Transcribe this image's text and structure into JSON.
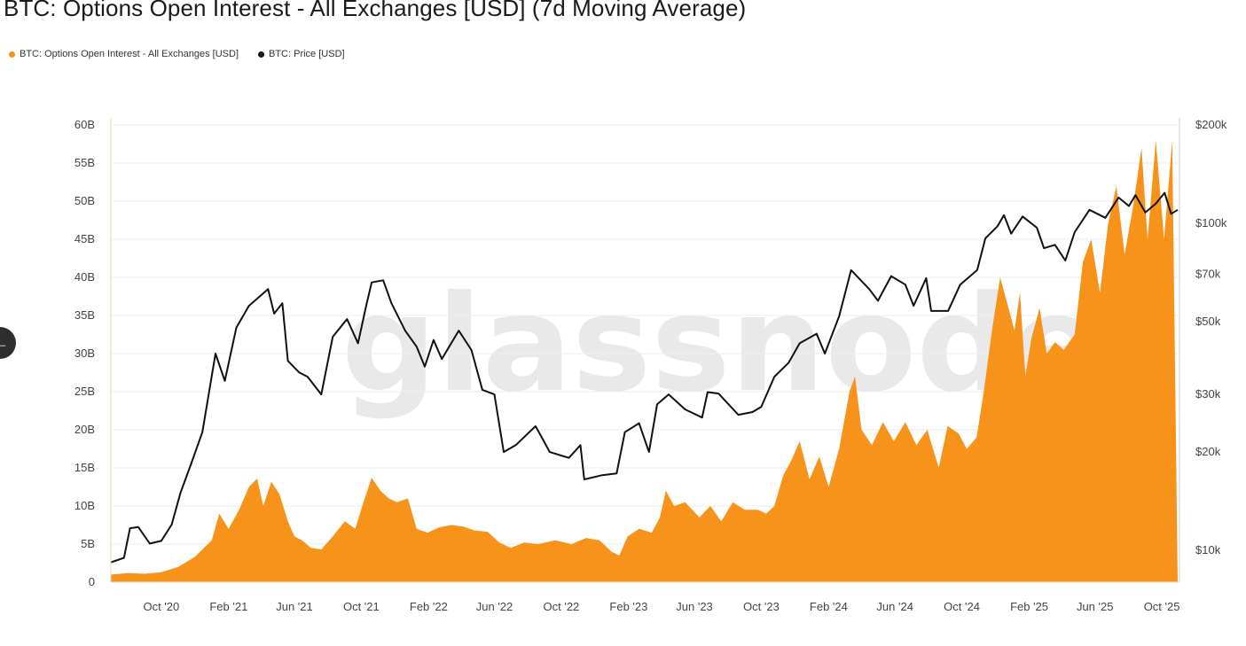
{
  "title": "BTC: Options Open Interest - All Exchanges [USD] (7d Moving Average)",
  "watermark": "glassnode",
  "side_button": "←",
  "legend": [
    {
      "label": "BTC: Options Open Interest - All Exchanges [USD]",
      "color": "#f7931a"
    },
    {
      "label": "BTC: Price [USD]",
      "color": "#111111"
    }
  ],
  "chart_data": {
    "type": "area",
    "title": "BTC: Options Open Interest - All Exchanges [USD] (7d Moving Average)",
    "x_range": [
      "2020-07-01",
      "2025-10-30"
    ],
    "x_ticks": [
      {
        "label": "Oct '20",
        "date": "2020-10-01"
      },
      {
        "label": "Feb '21",
        "date": "2021-02-01"
      },
      {
        "label": "Jun '21",
        "date": "2021-06-01"
      },
      {
        "label": "Oct '21",
        "date": "2021-10-01"
      },
      {
        "label": "Feb '22",
        "date": "2022-02-01"
      },
      {
        "label": "Jun '22",
        "date": "2022-06-01"
      },
      {
        "label": "Oct '22",
        "date": "2022-10-01"
      },
      {
        "label": "Feb '23",
        "date": "2023-02-01"
      },
      {
        "label": "Jun '23",
        "date": "2023-06-01"
      },
      {
        "label": "Oct '23",
        "date": "2023-10-01"
      },
      {
        "label": "Feb '24",
        "date": "2024-02-01"
      },
      {
        "label": "Jun '24",
        "date": "2024-06-01"
      },
      {
        "label": "Oct '24",
        "date": "2024-10-01"
      },
      {
        "label": "Feb '25",
        "date": "2025-02-01"
      },
      {
        "label": "Jun '25",
        "date": "2025-06-01"
      },
      {
        "label": "Oct '25",
        "date": "2025-10-01"
      }
    ],
    "y_left": {
      "min": 0,
      "max": 60,
      "ticks": [
        {
          "label": "0",
          "v": 0
        },
        {
          "label": "5B",
          "v": 5
        },
        {
          "label": "10B",
          "v": 10
        },
        {
          "label": "15B",
          "v": 15
        },
        {
          "label": "20B",
          "v": 20
        },
        {
          "label": "25B",
          "v": 25
        },
        {
          "label": "30B",
          "v": 30
        },
        {
          "label": "35B",
          "v": 35
        },
        {
          "label": "40B",
          "v": 40
        },
        {
          "label": "45B",
          "v": 45
        },
        {
          "label": "50B",
          "v": 50
        },
        {
          "label": "55B",
          "v": 55
        },
        {
          "label": "60B",
          "v": 60
        }
      ]
    },
    "y_right": {
      "scale": "log",
      "min": 8000,
      "max": 200000,
      "ticks": [
        {
          "label": "$10k",
          "v": 10000
        },
        {
          "label": "$20k",
          "v": 20000
        },
        {
          "label": "$30k",
          "v": 30000
        },
        {
          "label": "$50k",
          "v": 50000
        },
        {
          "label": "$70k",
          "v": 70000
        },
        {
          "label": "$100k",
          "v": 100000
        },
        {
          "label": "$200k",
          "v": 200000
        }
      ]
    },
    "series": [
      {
        "name": "BTC: Options Open Interest - All Exchanges [USD]",
        "unit": "B USD",
        "color": "#f7931a",
        "points": [
          [
            "2020-07-01",
            1.0
          ],
          [
            "2020-08-01",
            1.2
          ],
          [
            "2020-09-01",
            1.1
          ],
          [
            "2020-10-01",
            1.3
          ],
          [
            "2020-11-01",
            2.0
          ],
          [
            "2020-12-01",
            3.3
          ],
          [
            "2021-01-01",
            5.5
          ],
          [
            "2021-01-15",
            9.0
          ],
          [
            "2021-02-01",
            7.0
          ],
          [
            "2021-02-20",
            9.5
          ],
          [
            "2021-03-10",
            12.5
          ],
          [
            "2021-03-25",
            13.6
          ],
          [
            "2021-04-05",
            10.0
          ],
          [
            "2021-04-20",
            13.2
          ],
          [
            "2021-05-05",
            11.5
          ],
          [
            "2021-05-20",
            8.0
          ],
          [
            "2021-06-01",
            6.0
          ],
          [
            "2021-06-15",
            5.5
          ],
          [
            "2021-07-01",
            4.5
          ],
          [
            "2021-07-20",
            4.3
          ],
          [
            "2021-08-10",
            6.0
          ],
          [
            "2021-09-01",
            8.0
          ],
          [
            "2021-09-20",
            7.0
          ],
          [
            "2021-10-05",
            10.5
          ],
          [
            "2021-10-20",
            13.7
          ],
          [
            "2021-11-05",
            12.0
          ],
          [
            "2021-11-20",
            11.0
          ],
          [
            "2021-12-05",
            10.5
          ],
          [
            "2021-12-25",
            11.0
          ],
          [
            "2022-01-10",
            7.0
          ],
          [
            "2022-01-30",
            6.5
          ],
          [
            "2022-02-20",
            7.2
          ],
          [
            "2022-03-15",
            7.5
          ],
          [
            "2022-04-05",
            7.3
          ],
          [
            "2022-04-25",
            6.8
          ],
          [
            "2022-05-20",
            6.6
          ],
          [
            "2022-06-10",
            5.2
          ],
          [
            "2022-07-01",
            4.5
          ],
          [
            "2022-07-25",
            5.2
          ],
          [
            "2022-08-20",
            5.0
          ],
          [
            "2022-09-20",
            5.5
          ],
          [
            "2022-10-20",
            5.0
          ],
          [
            "2022-11-15",
            5.8
          ],
          [
            "2022-12-10",
            5.5
          ],
          [
            "2023-01-01",
            4.0
          ],
          [
            "2023-01-15",
            3.5
          ],
          [
            "2023-01-30",
            6.0
          ],
          [
            "2023-02-20",
            7.0
          ],
          [
            "2023-03-15",
            6.5
          ],
          [
            "2023-03-30",
            8.5
          ],
          [
            "2023-04-10",
            12.0
          ],
          [
            "2023-04-25",
            10.0
          ],
          [
            "2023-05-15",
            10.5
          ],
          [
            "2023-06-10",
            8.5
          ],
          [
            "2023-06-30",
            10.0
          ],
          [
            "2023-07-20",
            8.0
          ],
          [
            "2023-08-10",
            10.5
          ],
          [
            "2023-09-01",
            9.5
          ],
          [
            "2023-09-25",
            9.5
          ],
          [
            "2023-10-10",
            9.0
          ],
          [
            "2023-10-25",
            10.0
          ],
          [
            "2023-11-10",
            14.0
          ],
          [
            "2023-11-25",
            16.0
          ],
          [
            "2023-12-10",
            18.5
          ],
          [
            "2023-12-28",
            13.5
          ],
          [
            "2024-01-15",
            16.5
          ],
          [
            "2024-02-01",
            12.5
          ],
          [
            "2024-02-20",
            17.5
          ],
          [
            "2024-03-10",
            25.0
          ],
          [
            "2024-03-20",
            27.0
          ],
          [
            "2024-04-01",
            20.0
          ],
          [
            "2024-04-20",
            18.0
          ],
          [
            "2024-05-10",
            21.0
          ],
          [
            "2024-05-30",
            18.5
          ],
          [
            "2024-06-20",
            21.0
          ],
          [
            "2024-07-10",
            18.0
          ],
          [
            "2024-07-30",
            20.0
          ],
          [
            "2024-08-20",
            15.0
          ],
          [
            "2024-09-05",
            20.5
          ],
          [
            "2024-09-25",
            19.5
          ],
          [
            "2024-10-10",
            17.5
          ],
          [
            "2024-10-28",
            19.0
          ],
          [
            "2024-11-10",
            25.0
          ],
          [
            "2024-11-25",
            33.0
          ],
          [
            "2024-12-10",
            40.0
          ],
          [
            "2024-12-25",
            36.0
          ],
          [
            "2025-01-05",
            33.0
          ],
          [
            "2025-01-15",
            38.0
          ],
          [
            "2025-01-25",
            27.0
          ],
          [
            "2025-02-05",
            32.0
          ],
          [
            "2025-02-20",
            36.0
          ],
          [
            "2025-03-05",
            30.0
          ],
          [
            "2025-03-20",
            31.5
          ],
          [
            "2025-04-05",
            30.5
          ],
          [
            "2025-04-25",
            32.5
          ],
          [
            "2025-05-10",
            42.0
          ],
          [
            "2025-05-25",
            45.0
          ],
          [
            "2025-06-10",
            38.0
          ],
          [
            "2025-06-25",
            47.0
          ],
          [
            "2025-07-10",
            52.0
          ],
          [
            "2025-07-25",
            43.0
          ],
          [
            "2025-08-10",
            49.5
          ],
          [
            "2025-08-25",
            57.0
          ],
          [
            "2025-09-05",
            45.0
          ],
          [
            "2025-09-20",
            58.0
          ],
          [
            "2025-10-05",
            45.0
          ],
          [
            "2025-10-20",
            58.0
          ],
          [
            "2025-10-30",
            0.0
          ]
        ]
      },
      {
        "name": "BTC: Price [USD]",
        "unit": "USD",
        "color": "#111111",
        "points": [
          [
            "2020-07-01",
            9200
          ],
          [
            "2020-07-25",
            9500
          ],
          [
            "2020-08-05",
            11700
          ],
          [
            "2020-08-20",
            11800
          ],
          [
            "2020-09-10",
            10500
          ],
          [
            "2020-10-01",
            10700
          ],
          [
            "2020-10-20",
            12000
          ],
          [
            "2020-11-05",
            15000
          ],
          [
            "2020-11-25",
            18500
          ],
          [
            "2020-12-15",
            23000
          ],
          [
            "2021-01-08",
            40000
          ],
          [
            "2021-01-25",
            33000
          ],
          [
            "2021-02-15",
            48000
          ],
          [
            "2021-03-10",
            56000
          ],
          [
            "2021-04-14",
            63000
          ],
          [
            "2021-04-25",
            53000
          ],
          [
            "2021-05-10",
            57000
          ],
          [
            "2021-05-20",
            38000
          ],
          [
            "2021-06-10",
            35000
          ],
          [
            "2021-06-25",
            34000
          ],
          [
            "2021-07-20",
            30000
          ],
          [
            "2021-08-10",
            45000
          ],
          [
            "2021-09-05",
            51000
          ],
          [
            "2021-09-25",
            43000
          ],
          [
            "2021-10-10",
            56000
          ],
          [
            "2021-10-20",
            66000
          ],
          [
            "2021-11-10",
            67000
          ],
          [
            "2021-11-25",
            57000
          ],
          [
            "2021-12-20",
            47000
          ],
          [
            "2022-01-10",
            42000
          ],
          [
            "2022-01-25",
            36500
          ],
          [
            "2022-02-10",
            44000
          ],
          [
            "2022-02-25",
            38500
          ],
          [
            "2022-03-28",
            47000
          ],
          [
            "2022-04-20",
            41000
          ],
          [
            "2022-05-10",
            31000
          ],
          [
            "2022-06-01",
            30000
          ],
          [
            "2022-06-18",
            20000
          ],
          [
            "2022-07-10",
            21000
          ],
          [
            "2022-08-15",
            24000
          ],
          [
            "2022-09-10",
            20000
          ],
          [
            "2022-10-15",
            19200
          ],
          [
            "2022-11-05",
            21000
          ],
          [
            "2022-11-12",
            16500
          ],
          [
            "2022-12-15",
            17000
          ],
          [
            "2023-01-10",
            17200
          ],
          [
            "2023-01-25",
            23000
          ],
          [
            "2023-02-20",
            24500
          ],
          [
            "2023-03-10",
            20000
          ],
          [
            "2023-03-25",
            28000
          ],
          [
            "2023-04-15",
            30000
          ],
          [
            "2023-05-15",
            27000
          ],
          [
            "2023-06-15",
            25500
          ],
          [
            "2023-06-25",
            30500
          ],
          [
            "2023-07-15",
            30200
          ],
          [
            "2023-08-20",
            26000
          ],
          [
            "2023-09-15",
            26500
          ],
          [
            "2023-10-01",
            27500
          ],
          [
            "2023-10-25",
            34000
          ],
          [
            "2023-11-20",
            37500
          ],
          [
            "2023-12-10",
            43000
          ],
          [
            "2024-01-10",
            46000
          ],
          [
            "2024-01-25",
            40000
          ],
          [
            "2024-02-20",
            52000
          ],
          [
            "2024-03-13",
            72000
          ],
          [
            "2024-04-15",
            63000
          ],
          [
            "2024-05-01",
            58000
          ],
          [
            "2024-05-25",
            69000
          ],
          [
            "2024-06-20",
            65000
          ],
          [
            "2024-07-05",
            56000
          ],
          [
            "2024-07-28",
            68000
          ],
          [
            "2024-08-06",
            54000
          ],
          [
            "2024-09-06",
            54000
          ],
          [
            "2024-09-28",
            65000
          ],
          [
            "2024-10-29",
            72000
          ],
          [
            "2024-11-13",
            90000
          ],
          [
            "2024-12-05",
            98000
          ],
          [
            "2024-12-17",
            106000
          ],
          [
            "2024-12-30",
            93000
          ],
          [
            "2025-01-20",
            105000
          ],
          [
            "2025-02-15",
            97000
          ],
          [
            "2025-02-28",
            84000
          ],
          [
            "2025-03-20",
            86000
          ],
          [
            "2025-04-08",
            77000
          ],
          [
            "2025-04-25",
            94000
          ],
          [
            "2025-05-22",
            110000
          ],
          [
            "2025-06-20",
            104000
          ],
          [
            "2025-07-14",
            120000
          ],
          [
            "2025-08-02",
            113000
          ],
          [
            "2025-08-14",
            122000
          ],
          [
            "2025-09-01",
            108000
          ],
          [
            "2025-09-20",
            115000
          ],
          [
            "2025-10-06",
            124000
          ],
          [
            "2025-10-18",
            107000
          ],
          [
            "2025-10-30",
            110000
          ]
        ]
      }
    ]
  }
}
